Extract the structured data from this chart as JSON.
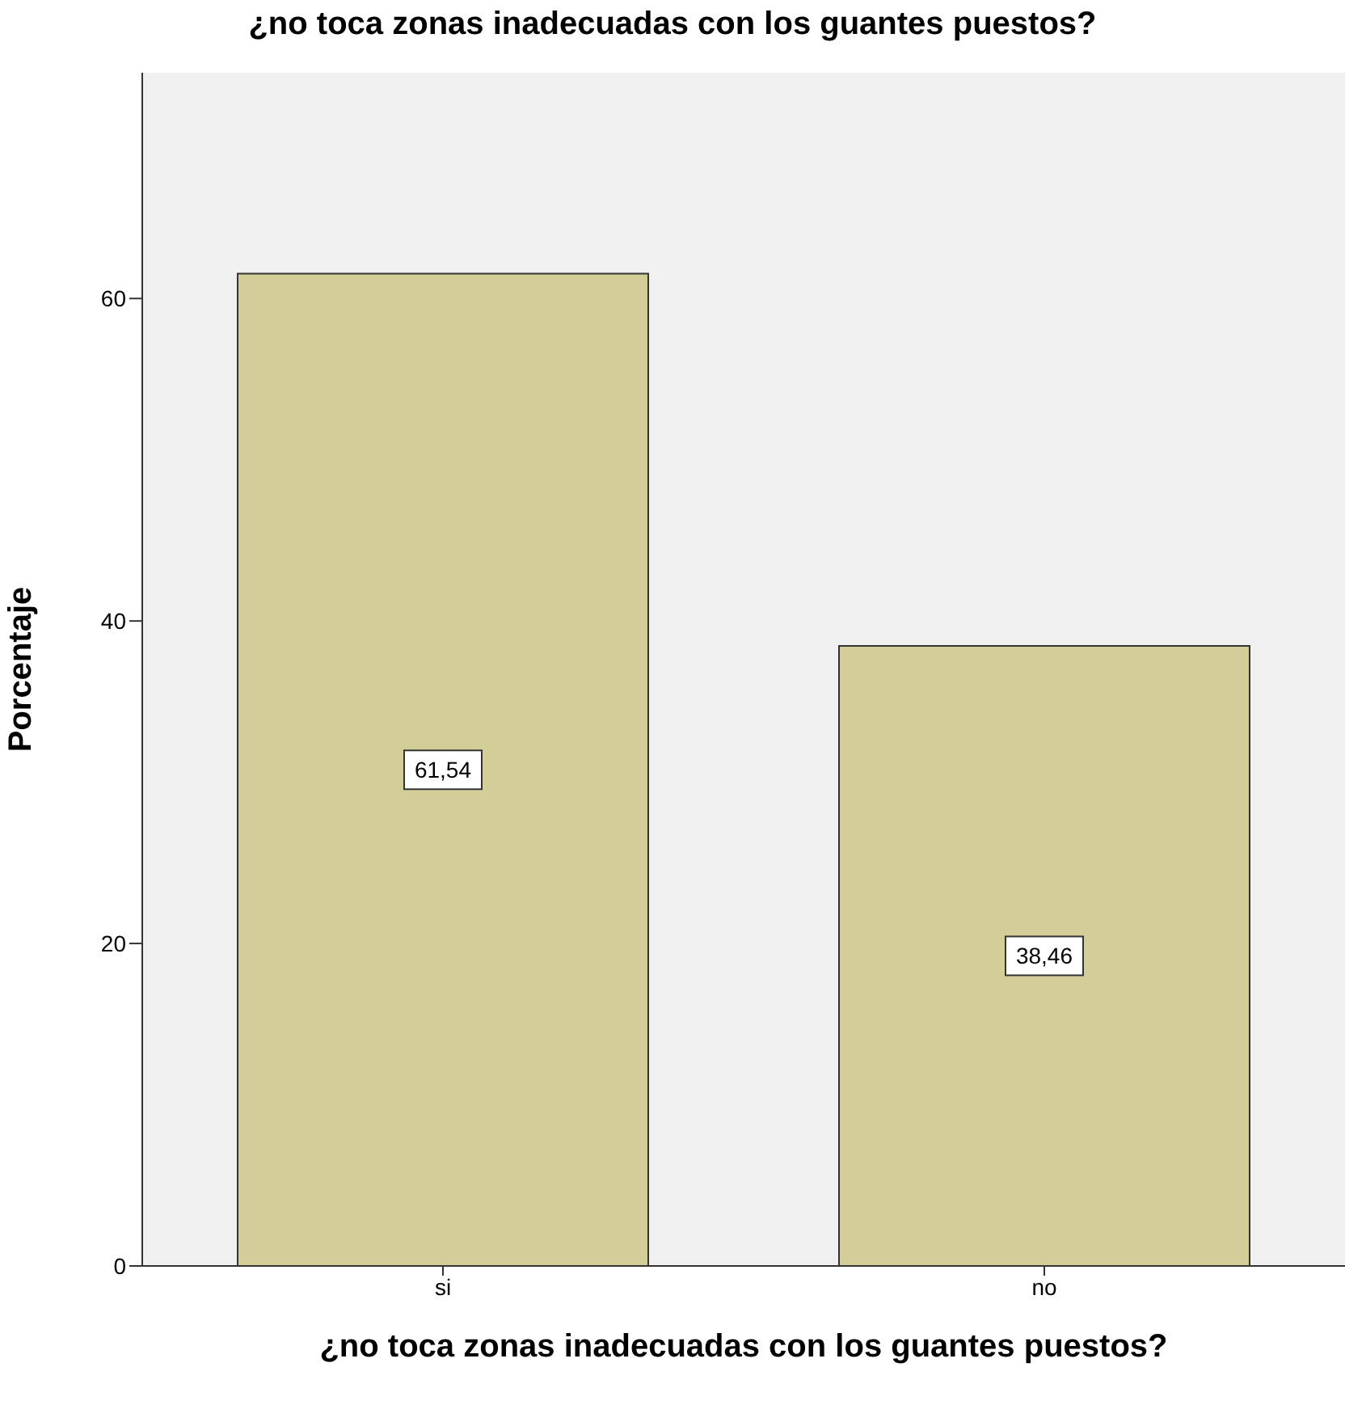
{
  "chart_data": {
    "type": "bar",
    "title": "¿no toca zonas inadecuadas con los guantes puestos?",
    "xlabel": "¿no toca zonas inadecuadas con los guantes puestos?",
    "ylabel": "Porcentaje",
    "categories": [
      "si",
      "no"
    ],
    "values": [
      61.54,
      38.46
    ],
    "value_labels": [
      "61,54",
      "38,46"
    ],
    "color": "#d3ce97",
    "ylim": [
      0,
      74
    ],
    "yticks": [
      0,
      20,
      40,
      60
    ],
    "grid": false
  }
}
